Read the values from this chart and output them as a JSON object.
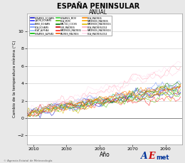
{
  "title": "ESPAÑA PENINSULAR",
  "subtitle": "ANUAL",
  "xlabel": "Año",
  "ylabel": "Cambio de la temperatura mínima (°C)",
  "xlim": [
    2006,
    2100
  ],
  "ylim": [
    -3,
    12
  ],
  "yticks": [
    -2,
    0,
    2,
    4,
    6,
    8,
    10
  ],
  "xticks": [
    2010,
    2030,
    2050,
    2070,
    2090
  ],
  "bg_color": "#e8e8e8",
  "plot_bg": "#ffffff",
  "footer_text": "© Agencia Estatal de Meteorología",
  "num_series": 18,
  "colors": [
    "#1111cc",
    "#3333ff",
    "#5577ff",
    "#7799ff",
    "#99bbff",
    "#00bb00",
    "#33cc33",
    "#55bb00",
    "#007700",
    "#cc0000",
    "#ff2222",
    "#ff5500",
    "#ff8800",
    "#ffaa00",
    "#ddbb00",
    "#ffaabb",
    "#ffccdd",
    "#ffddee"
  ],
  "seed": 42
}
